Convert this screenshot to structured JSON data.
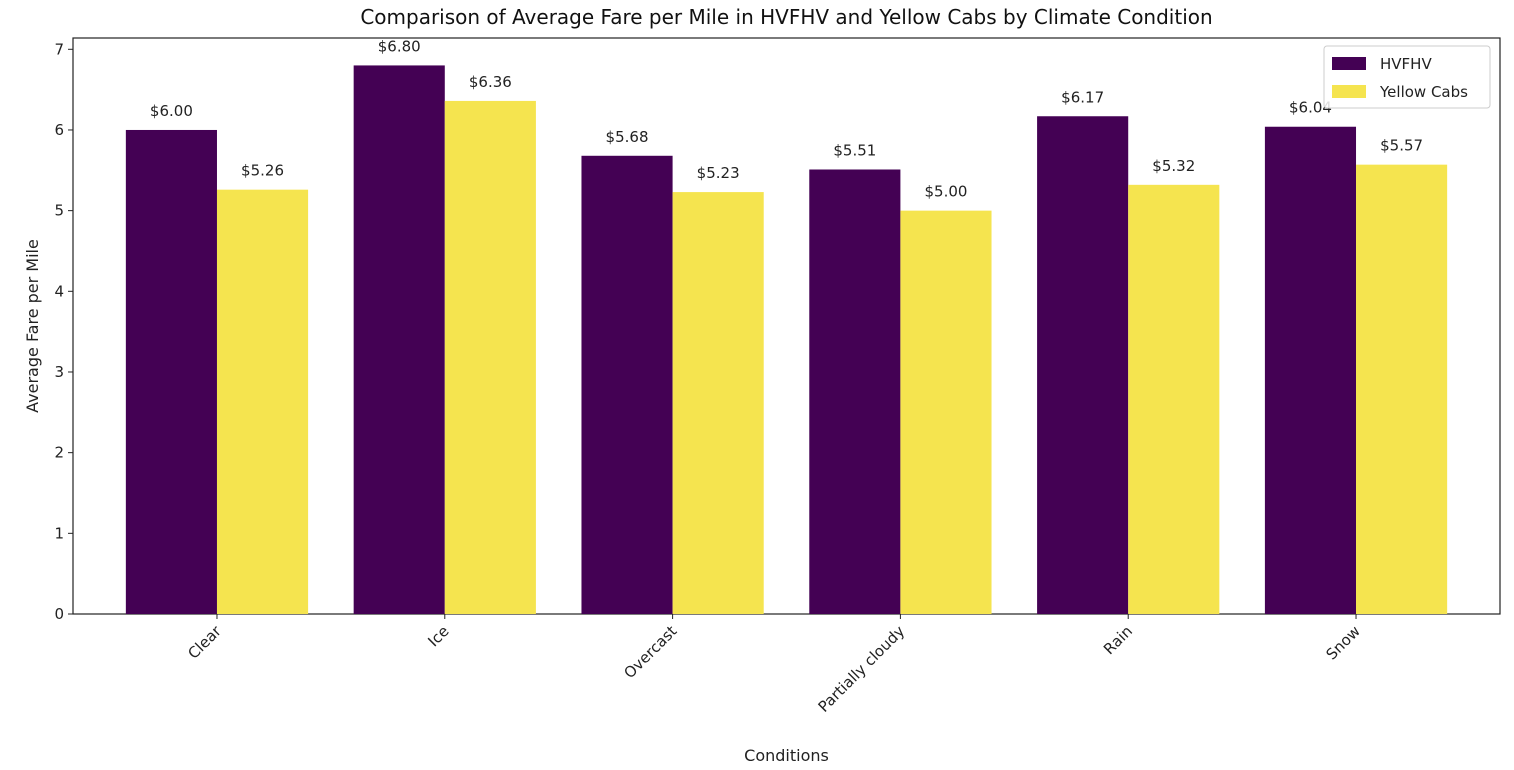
{
  "chart_data": {
    "type": "bar",
    "title": "Comparison of Average Fare per Mile in HVFHV and Yellow Cabs by Climate Condition",
    "xlabel": "Conditions",
    "ylabel": "Average Fare per Mile",
    "categories": [
      "Clear",
      "Ice",
      "Overcast",
      "Partially cloudy",
      "Rain",
      "Snow"
    ],
    "series": [
      {
        "name": "HVFHV",
        "color": "#440154",
        "values": [
          6.0,
          6.8,
          5.68,
          5.51,
          6.17,
          6.04
        ],
        "labels": [
          "$6.00",
          "$6.80",
          "$5.68",
          "$5.51",
          "$6.17",
          "$6.04"
        ]
      },
      {
        "name": "Yellow Cabs",
        "color": "#f5e44f",
        "values": [
          5.26,
          6.36,
          5.23,
          5.0,
          5.32,
          5.57
        ],
        "labels": [
          "$5.26",
          "$6.36",
          "$5.23",
          "$5.00",
          "$5.32",
          "$5.57"
        ]
      }
    ],
    "yticks": [
      0,
      1,
      2,
      3,
      4,
      5,
      6,
      7
    ],
    "ylim": [
      0,
      7.14
    ],
    "grid": false,
    "legend_position": "top-right"
  }
}
